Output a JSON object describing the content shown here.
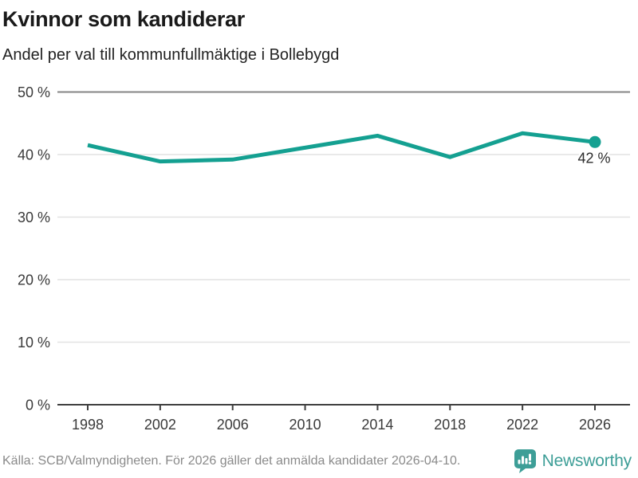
{
  "header": {
    "title": "Kvinnor som kandiderar",
    "subtitle": "Andel per val till kommunfullmäktige i Bollebygd"
  },
  "chart_data": {
    "type": "line",
    "title": "Kvinnor som kandiderar",
    "subtitle": "Andel per val till kommunfullmäktige i Bollebygd",
    "x": [
      "1998",
      "2002",
      "2006",
      "2010",
      "2014",
      "2018",
      "2022",
      "2026"
    ],
    "values": [
      41.5,
      38.9,
      39.2,
      41.1,
      43.0,
      39.6,
      43.4,
      42.0
    ],
    "unit": "%",
    "ylim": [
      0,
      50
    ],
    "yticks": [
      0,
      10,
      20,
      30,
      40,
      50
    ],
    "ytick_labels": [
      "0 %",
      "10 %",
      "20 %",
      "30 %",
      "40 %",
      "50 %"
    ],
    "xtick_labels": [
      "1998",
      "2002",
      "2006",
      "2010",
      "2014",
      "2018",
      "2022",
      "2026"
    ],
    "grid": true,
    "legend": "none",
    "end_label": "42 %",
    "line_color": "#14a091"
  },
  "footer": {
    "source": "Källa: SCB/Valmyndigheten. För 2026 gäller det anmälda kandidater 2026-04-10.",
    "brand": "Newsworthy",
    "brand_color": "#3d9e97",
    "logo_icon": "newsworthy-speech-bubble-bar-chart-icon"
  }
}
